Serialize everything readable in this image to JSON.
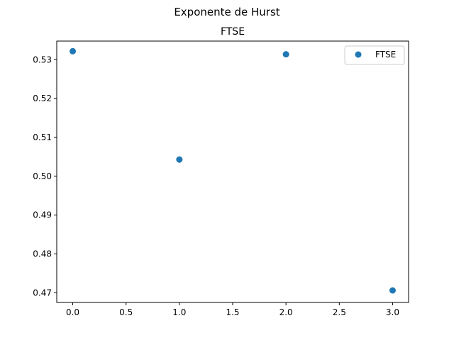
{
  "suptitle": "Exponente de Hurst",
  "chart_data": {
    "type": "scatter",
    "title": "FTSE",
    "xlabel": "",
    "ylabel": "",
    "xlim": [
      -0.15,
      3.15
    ],
    "ylim": [
      0.4675,
      0.5348
    ],
    "x_ticks": [
      0.0,
      0.5,
      1.0,
      1.5,
      2.0,
      2.5,
      3.0
    ],
    "x_tick_labels": [
      "0.0",
      "0.5",
      "1.0",
      "1.5",
      "2.0",
      "2.5",
      "3.0"
    ],
    "y_ticks": [
      0.47,
      0.48,
      0.49,
      0.5,
      0.51,
      0.52,
      0.53
    ],
    "y_tick_labels": [
      "0.47",
      "0.48",
      "0.49",
      "0.50",
      "0.51",
      "0.52",
      "0.53"
    ],
    "grid": false,
    "legend_position": "upper right",
    "series": [
      {
        "name": "FTSE",
        "color": "#1f77b4",
        "marker": "circle",
        "x": [
          0,
          1,
          2,
          3
        ],
        "y": [
          0.5322,
          0.5043,
          0.5314,
          0.4706
        ]
      }
    ]
  }
}
